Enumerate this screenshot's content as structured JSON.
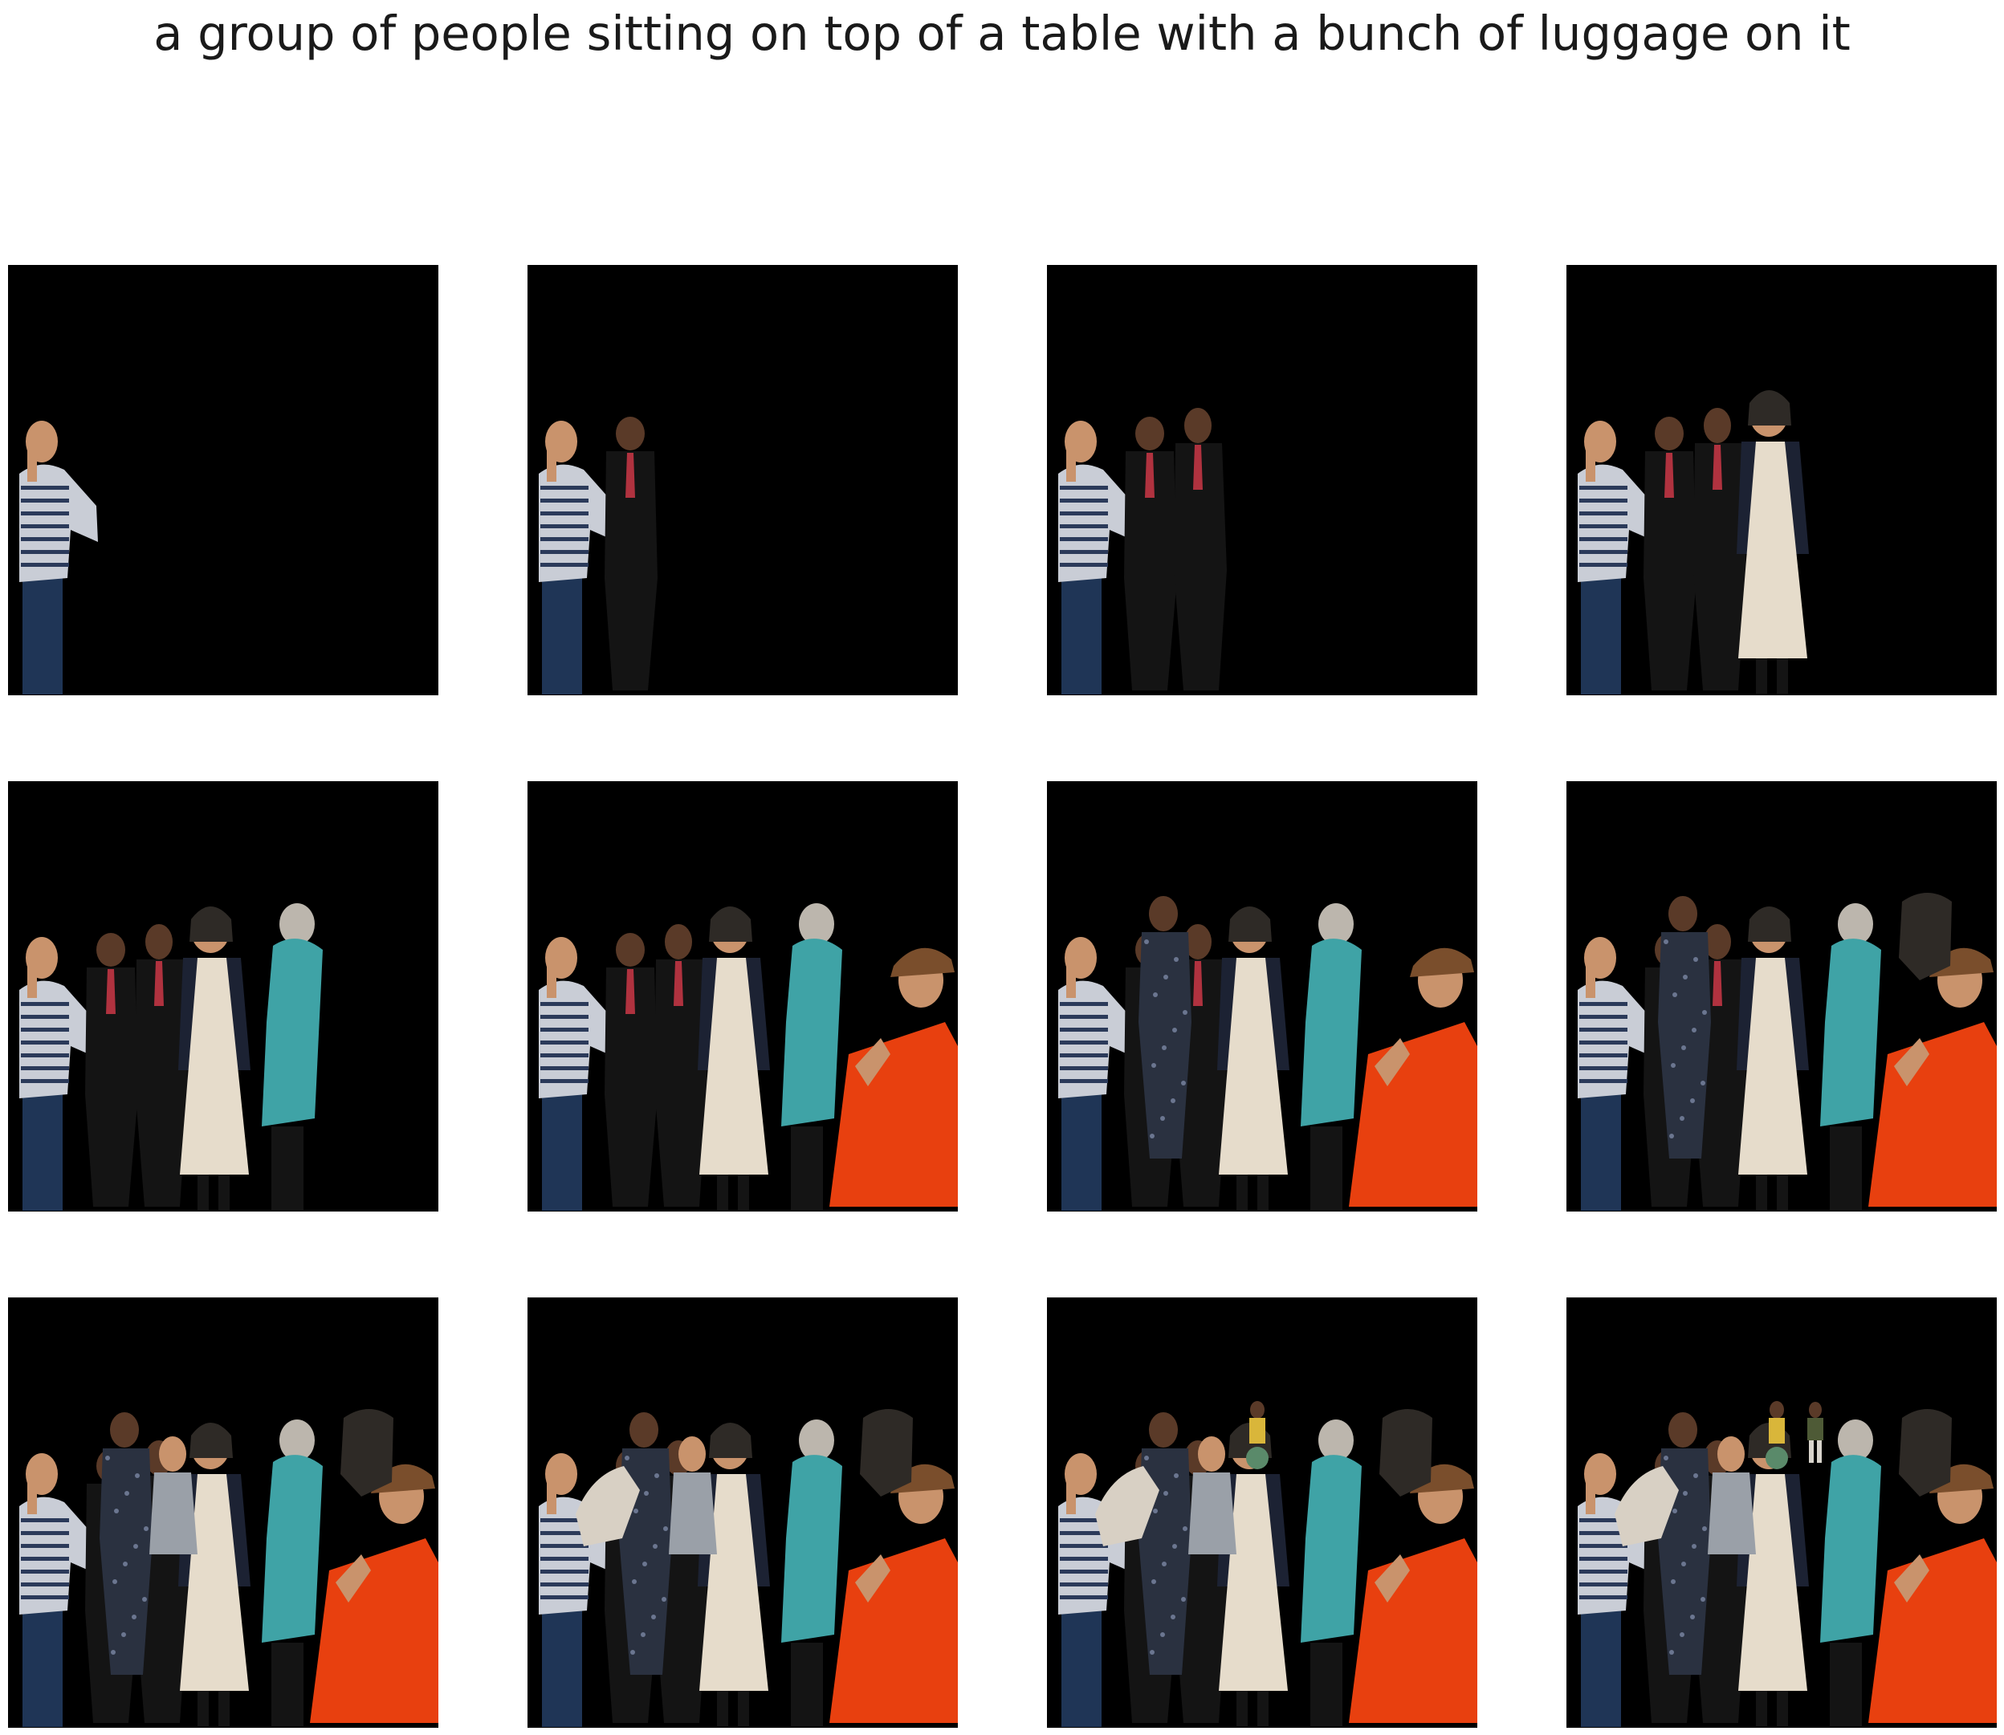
{
  "caption": "a group of people sitting on top of a table with a bunch of luggage on it",
  "colors": {
    "page_background": "#ffffff",
    "panel_background": "#000000",
    "striped_shirt": "#c9cdd6",
    "stripe": "#2b3a5a",
    "jeans": "#1f3556",
    "suit": "#141414",
    "tie": "#b0323f",
    "skin": "#c9936c",
    "dark_skin": "#5a3a28",
    "blazer": "#1c2233",
    "dress": "#e6dccb",
    "teal_top": "#3fa3a6",
    "grey_hair": "#bcb6ad",
    "orange_shirt": "#e8400f",
    "brown_hat": "#7a4e2c",
    "camo": "#2a3140",
    "dark_blob": "#2e2a26",
    "small_figure_yellow": "#d9b63a",
    "small_figure_green": "#4e5a36",
    "pale_crop": "#d8d0c4"
  },
  "panels": [
    {
      "step": 1,
      "figures": [
        "man-striped"
      ]
    },
    {
      "step": 2,
      "figures": [
        "man-striped",
        "man-suit-1"
      ]
    },
    {
      "step": 3,
      "figures": [
        "man-striped",
        "man-suit-1",
        "man-suit-2"
      ]
    },
    {
      "step": 4,
      "figures": [
        "man-striped",
        "man-suit-1",
        "man-suit-2",
        "woman-dress"
      ]
    },
    {
      "step": 5,
      "figures": [
        "man-striped",
        "man-suit-1",
        "man-suit-2",
        "woman-dress",
        "woman-teal"
      ]
    },
    {
      "step": 6,
      "figures": [
        "man-striped",
        "man-suit-1",
        "man-suit-2",
        "woman-dress",
        "woman-teal",
        "man-orange"
      ]
    },
    {
      "step": 7,
      "figures": [
        "man-striped",
        "man-suit-1",
        "man-suit-2",
        "woman-dress",
        "woman-teal",
        "man-orange",
        "soldier"
      ]
    },
    {
      "step": 8,
      "figures": [
        "man-striped",
        "man-suit-1",
        "man-suit-2",
        "woman-dress",
        "woman-teal",
        "man-orange",
        "soldier",
        "dark-head"
      ]
    },
    {
      "step": 9,
      "figures": [
        "man-striped",
        "man-suit-1",
        "man-suit-2",
        "woman-dress",
        "woman-teal",
        "man-orange",
        "soldier",
        "dark-head",
        "grey-man"
      ]
    },
    {
      "step": 10,
      "figures": [
        "man-striped",
        "man-suit-1",
        "man-suit-2",
        "woman-dress",
        "woman-teal",
        "man-orange",
        "soldier",
        "dark-head",
        "grey-man",
        "pale-crop"
      ]
    },
    {
      "step": 11,
      "figures": [
        "man-striped",
        "man-suit-1",
        "man-suit-2",
        "woman-dress",
        "woman-teal",
        "man-orange",
        "soldier",
        "dark-head",
        "grey-man",
        "pale-crop",
        "small-yellow"
      ]
    },
    {
      "step": 12,
      "figures": [
        "man-striped",
        "man-suit-1",
        "man-suit-2",
        "woman-dress",
        "woman-teal",
        "man-orange",
        "soldier",
        "dark-head",
        "grey-man",
        "pale-crop",
        "small-yellow",
        "small-green"
      ]
    }
  ]
}
